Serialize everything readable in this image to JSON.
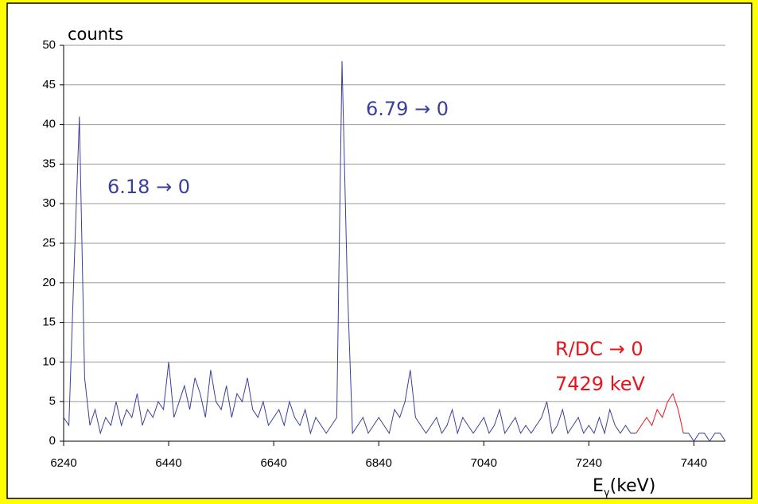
{
  "chart_data": {
    "type": "line",
    "ylabel": "counts",
    "xlabel": [
      "E",
      "γ",
      "(keV)"
    ],
    "annotations": [
      {
        "text": "6.18 → 0",
        "color": "#3b3f9a"
      },
      {
        "text": "6.79 → 0",
        "color": "#3b3f9a"
      },
      {
        "text": "R/DC → 0",
        "color": "#e8141c"
      },
      {
        "text": "7429 keV",
        "color": "#e8141c"
      }
    ],
    "xlim": [
      6240,
      7500
    ],
    "xticks": [
      6240,
      6440,
      6640,
      6840,
      7040,
      7240,
      7440
    ],
    "ylim": [
      0,
      50
    ],
    "yticks": [
      0,
      5,
      10,
      15,
      20,
      25,
      30,
      35,
      40,
      45,
      50
    ],
    "grid": true,
    "x": [
      6240,
      6250,
      6260,
      6270,
      6280,
      6290,
      6300,
      6310,
      6320,
      6330,
      6340,
      6350,
      6360,
      6370,
      6380,
      6390,
      6400,
      6410,
      6420,
      6430,
      6440,
      6450,
      6460,
      6470,
      6480,
      6490,
      6500,
      6510,
      6520,
      6530,
      6540,
      6550,
      6560,
      6570,
      6580,
      6590,
      6600,
      6610,
      6620,
      6630,
      6640,
      6650,
      6660,
      6670,
      6680,
      6690,
      6700,
      6710,
      6720,
      6730,
      6740,
      6750,
      6760,
      6770,
      6780,
      6790,
      6800,
      6810,
      6820,
      6830,
      6840,
      6850,
      6860,
      6870,
      6880,
      6890,
      6900,
      6910,
      6920,
      6930,
      6940,
      6950,
      6960,
      6970,
      6980,
      6990,
      7000,
      7010,
      7020,
      7030,
      7040,
      7050,
      7060,
      7070,
      7080,
      7090,
      7100,
      7110,
      7120,
      7130,
      7140,
      7150,
      7160,
      7170,
      7180,
      7190,
      7200,
      7210,
      7220,
      7230,
      7240,
      7250,
      7260,
      7270,
      7280,
      7290,
      7300,
      7310,
      7320,
      7330,
      7340,
      7350,
      7360,
      7370,
      7380,
      7390,
      7400,
      7410,
      7420,
      7430,
      7440,
      7450,
      7460,
      7470,
      7480,
      7490,
      7500
    ],
    "series": [
      {
        "color": "#3b3f9a",
        "values": [
          3,
          2,
          22,
          41,
          8,
          2,
          4,
          1,
          3,
          2,
          5,
          2,
          4,
          3,
          6,
          2,
          4,
          3,
          5,
          4,
          10,
          3,
          5,
          7,
          4,
          8,
          6,
          3,
          9,
          5,
          4,
          7,
          3,
          6,
          5,
          8,
          4,
          3,
          5,
          2,
          3,
          4,
          2,
          5,
          3,
          2,
          4,
          1,
          3,
          2,
          1,
          2,
          3,
          48,
          20,
          1,
          2,
          3,
          1,
          2,
          3,
          2,
          1,
          4,
          3,
          5,
          9,
          3,
          2,
          1,
          2,
          3,
          1,
          2,
          4,
          1,
          3,
          2,
          1,
          2,
          3,
          1,
          2,
          4,
          1,
          2,
          3,
          1,
          2,
          1,
          2,
          3,
          5,
          1,
          2,
          4,
          1,
          2,
          3,
          1,
          2,
          1,
          3,
          1,
          4,
          2,
          1,
          2,
          1,
          1,
          null,
          null,
          null,
          null,
          null,
          null,
          null,
          null,
          1,
          1,
          0,
          1,
          1,
          0,
          1,
          1,
          0
        ]
      },
      {
        "color": "#e8141c",
        "x": [
          7330,
          7340,
          7350,
          7360,
          7370,
          7380,
          7390,
          7400,
          7410,
          7420
        ],
        "values": [
          1,
          2,
          3,
          2,
          4,
          3,
          5,
          6,
          4,
          1
        ]
      }
    ]
  }
}
